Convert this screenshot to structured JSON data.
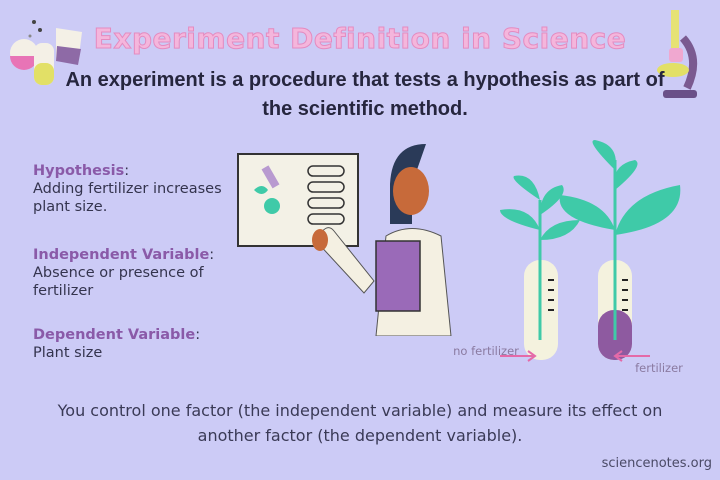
{
  "title": "Experiment Definition in Science",
  "subtitle": "An experiment is a procedure that tests a hypothesis as part of the scientific method.",
  "definitions": [
    {
      "term": "Hypothesis",
      "text": "Adding fertilizer increases plant size."
    },
    {
      "term": "Independent Variable",
      "text": "Absence or presence of fertilizer"
    },
    {
      "term": "Dependent Variable",
      "text": "Plant size"
    }
  ],
  "illustration": {
    "tube_left_label": "no fertilizer",
    "tube_right_label": "fertilizer",
    "icons": [
      "lab-flasks-icon",
      "microscope-icon",
      "scientist-with-board",
      "plant-test-tubes"
    ]
  },
  "bottom_text": "You control one factor (the independent variable) and measure its effect on another factor (the dependent variable).",
  "credit": "sciencenotes.org",
  "colors": {
    "background": "#cccbf6",
    "title": "#f4b6dc",
    "term": "#8a5aa8",
    "leaf": "#3fcaa8",
    "fertilizer": "#8e5aa0"
  }
}
